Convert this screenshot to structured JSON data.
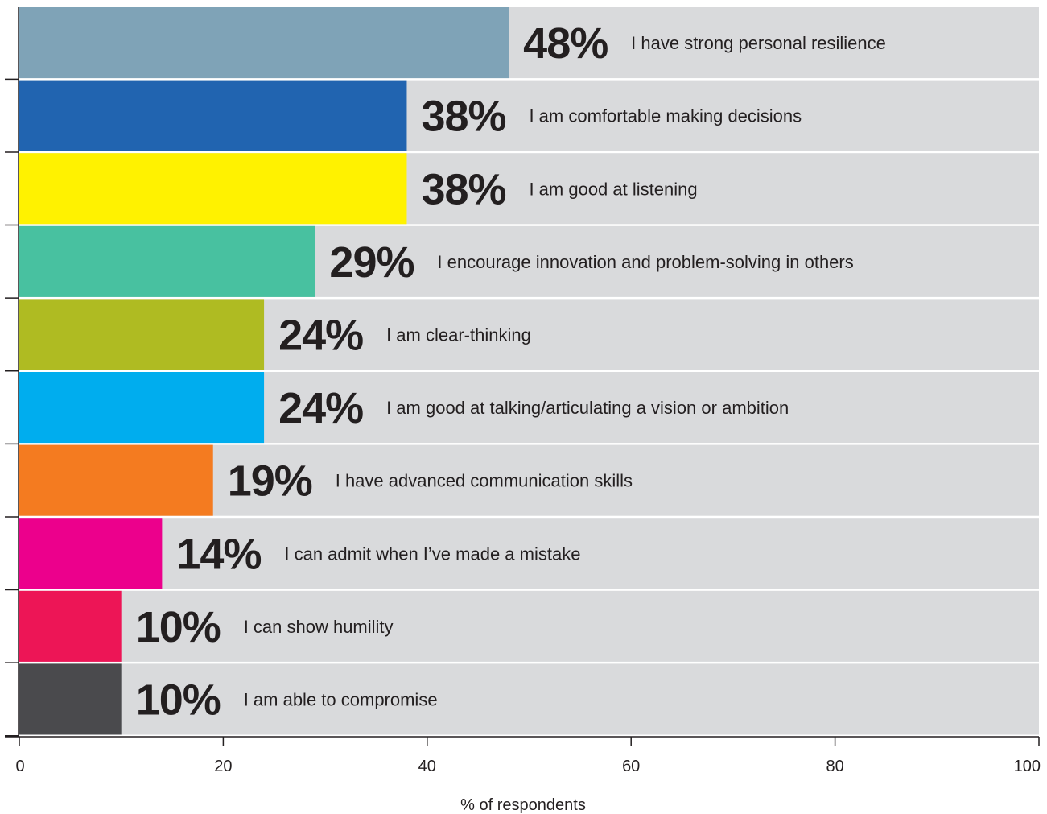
{
  "chart_data": {
    "type": "bar",
    "orientation": "horizontal",
    "xlabel": "% of respondents",
    "xlim": [
      0,
      100
    ],
    "xticks": [
      "0",
      "20",
      "40",
      "60",
      "80",
      "100"
    ],
    "background_color": "#d9dadc",
    "bars": [
      {
        "label": "I have strong personal resilience",
        "value": 48,
        "display": "48%",
        "color": "#7fa3b7"
      },
      {
        "label": "I am comfortable making decisions",
        "value": 38,
        "display": "38%",
        "color": "#2164b0"
      },
      {
        "label": "I am good at listening",
        "value": 38,
        "display": "38%",
        "color": "#fff200"
      },
      {
        "label": "I encourage innovation and problem-solving in others",
        "value": 29,
        "display": "29%",
        "color": "#48c1a0"
      },
      {
        "label": "I am clear-thinking",
        "value": 24,
        "display": "24%",
        "color": "#afbb22"
      },
      {
        "label": "I am good at talking/articulating a vision or ambition",
        "value": 24,
        "display": "24%",
        "color": "#00adee"
      },
      {
        "label": "I have advanced communication skills",
        "value": 19,
        "display": "19%",
        "color": "#f47b20"
      },
      {
        "label": "I can admit when I’ve made a mistake",
        "value": 14,
        "display": "14%",
        "color": "#ec008c"
      },
      {
        "label": "I can show humility",
        "value": 10,
        "display": "10%",
        "color": "#ed1556"
      },
      {
        "label": "I am able to compromise",
        "value": 10,
        "display": "10%",
        "color": "#4a4a4d"
      }
    ]
  }
}
